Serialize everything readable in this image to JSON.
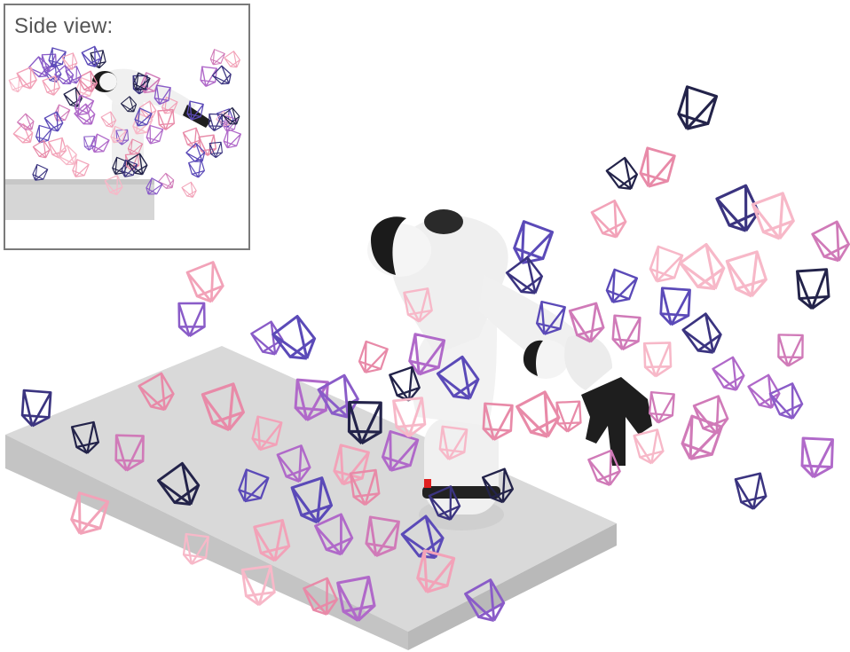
{
  "inset": {
    "label": "Side view:"
  },
  "colors": {
    "background": "#ffffff",
    "table_top": "#dadada",
    "table_side": "#c2c2c2",
    "robot_white": "#f2f2f2",
    "robot_shade": "#d6d6d6",
    "robot_black": "#1c1c1c",
    "frustum_palette": [
      "#23234a",
      "#3b3480",
      "#5b4ab8",
      "#8a5cc8",
      "#b069c9",
      "#d07ab8",
      "#e88aa8",
      "#f2a2b8",
      "#f7b8c8"
    ]
  },
  "icons": {
    "frustum": "camera-frustum-icon",
    "robot": "franka-robot-arm",
    "table": "gray-table-slab"
  }
}
